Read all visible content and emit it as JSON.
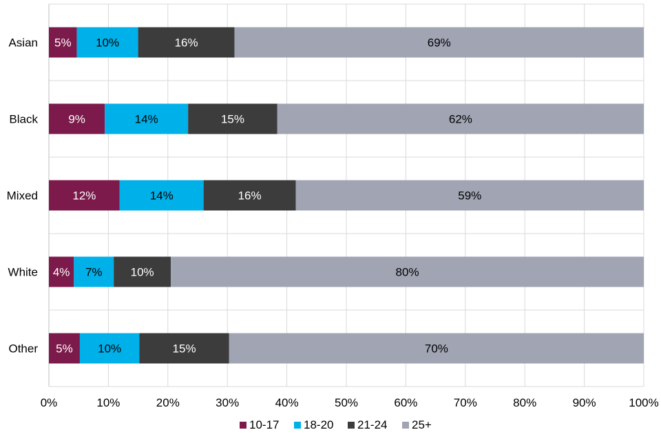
{
  "chart_data": {
    "type": "bar",
    "orientation": "horizontal",
    "stacked": true,
    "percent_stacked": true,
    "categories": [
      "Asian",
      "Black",
      "Mixed",
      "White",
      "Other"
    ],
    "series": [
      {
        "name": "10-17",
        "color": "#7b1a4b",
        "values": [
          4.7,
          9.4,
          11.9,
          4.2,
          5.2
        ],
        "labels": [
          "5%",
          "9%",
          "12%",
          "4%",
          "5%"
        ],
        "label_color": "#ffffff"
      },
      {
        "name": "18-20",
        "color": "#00b0e8",
        "values": [
          10.3,
          14.0,
          14.1,
          6.7,
          10.0
        ],
        "labels": [
          "10%",
          "14%",
          "14%",
          "7%",
          "10%"
        ],
        "label_color": "#000000"
      },
      {
        "name": "21-24",
        "color": "#3c3c3c",
        "values": [
          16.2,
          15.0,
          15.5,
          9.6,
          15.1
        ],
        "labels": [
          "16%",
          "15%",
          "16%",
          "10%",
          "15%"
        ],
        "label_color": "#ffffff"
      },
      {
        "name": "25+",
        "color": "#a1a5b3",
        "values": [
          68.8,
          61.6,
          58.5,
          79.5,
          69.7
        ],
        "labels": [
          "69%",
          "62%",
          "59%",
          "80%",
          "70%"
        ],
        "label_color": "#000000"
      }
    ],
    "x_ticks": [
      "0%",
      "10%",
      "20%",
      "30%",
      "40%",
      "50%",
      "60%",
      "70%",
      "80%",
      "90%",
      "100%"
    ],
    "xlim": [
      0,
      100
    ],
    "title": "",
    "xlabel": "",
    "ylabel": "",
    "grid": true,
    "legend_position": "bottom"
  }
}
